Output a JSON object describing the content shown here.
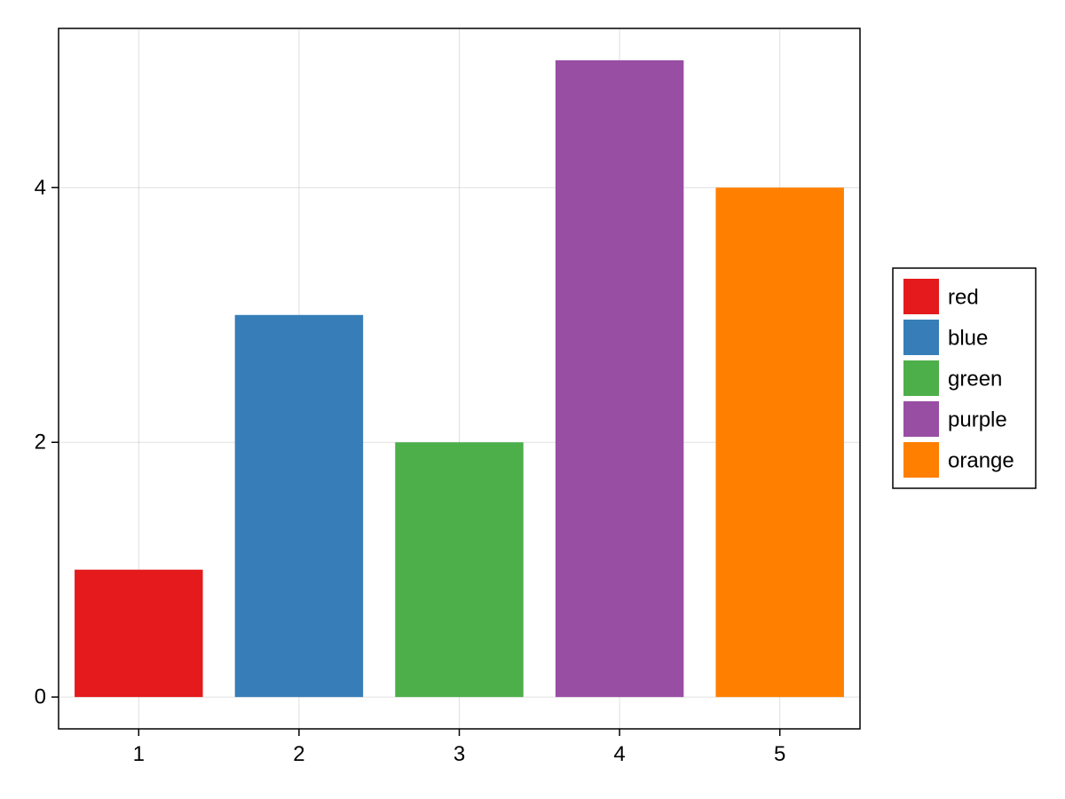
{
  "chart_data": {
    "type": "bar",
    "title": "",
    "xlabel": "",
    "ylabel": "",
    "categories": [
      1,
      2,
      3,
      4,
      5
    ],
    "x_ticks": [
      "1",
      "2",
      "3",
      "4",
      "5"
    ],
    "y_ticks": [
      "0",
      "2",
      "4"
    ],
    "y_tick_values": [
      0,
      2,
      4
    ],
    "ylim": [
      -0.25,
      5.25
    ],
    "xlim": [
      0.5,
      5.5
    ],
    "grid": true,
    "legend_position": "right",
    "series": [
      {
        "name": "red",
        "x": 1,
        "value": 1,
        "color": "#e41a1c"
      },
      {
        "name": "blue",
        "x": 2,
        "value": 3,
        "color": "#377eb8"
      },
      {
        "name": "green",
        "x": 3,
        "value": 2,
        "color": "#4daf4a"
      },
      {
        "name": "purple",
        "x": 4,
        "value": 5,
        "color": "#984ea3"
      },
      {
        "name": "orange",
        "x": 5,
        "value": 4,
        "color": "#ff7f00"
      }
    ]
  }
}
